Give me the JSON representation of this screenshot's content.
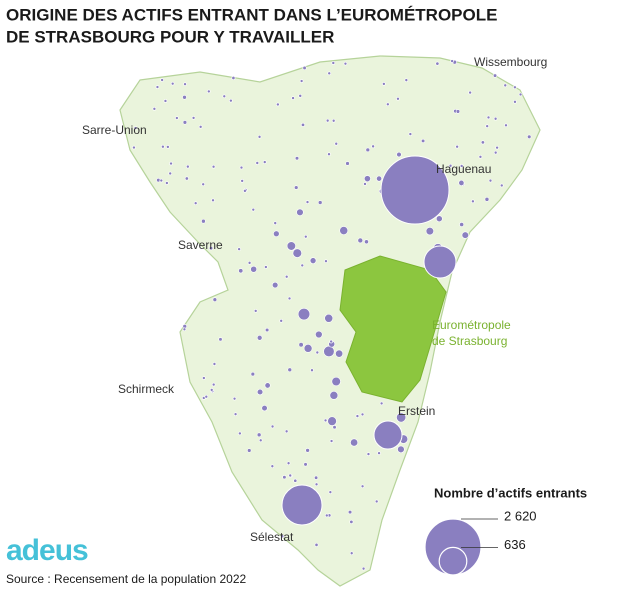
{
  "title": [
    "ORIGINE DES ACTIFS ENTRANT DANS L’EUROMÉTROPOLE",
    "DE STRASBOURG POUR Y TRAVAILLER"
  ],
  "places": [
    "Wissembourg",
    "Sarre-Union",
    "Haguenau",
    "Saverne",
    "Schirmeck",
    "Erstein",
    "Sélestat"
  ],
  "zone": [
    "Eurométropole",
    "de Strasbourg"
  ],
  "legend": {
    "title": "Nombre d’actifs entrants",
    "values": [
      {
        "value": 2620,
        "label": "2 620"
      },
      636
    ]
  },
  "logo": "adeus",
  "source": "Source : Recensement de la population 2022"
}
